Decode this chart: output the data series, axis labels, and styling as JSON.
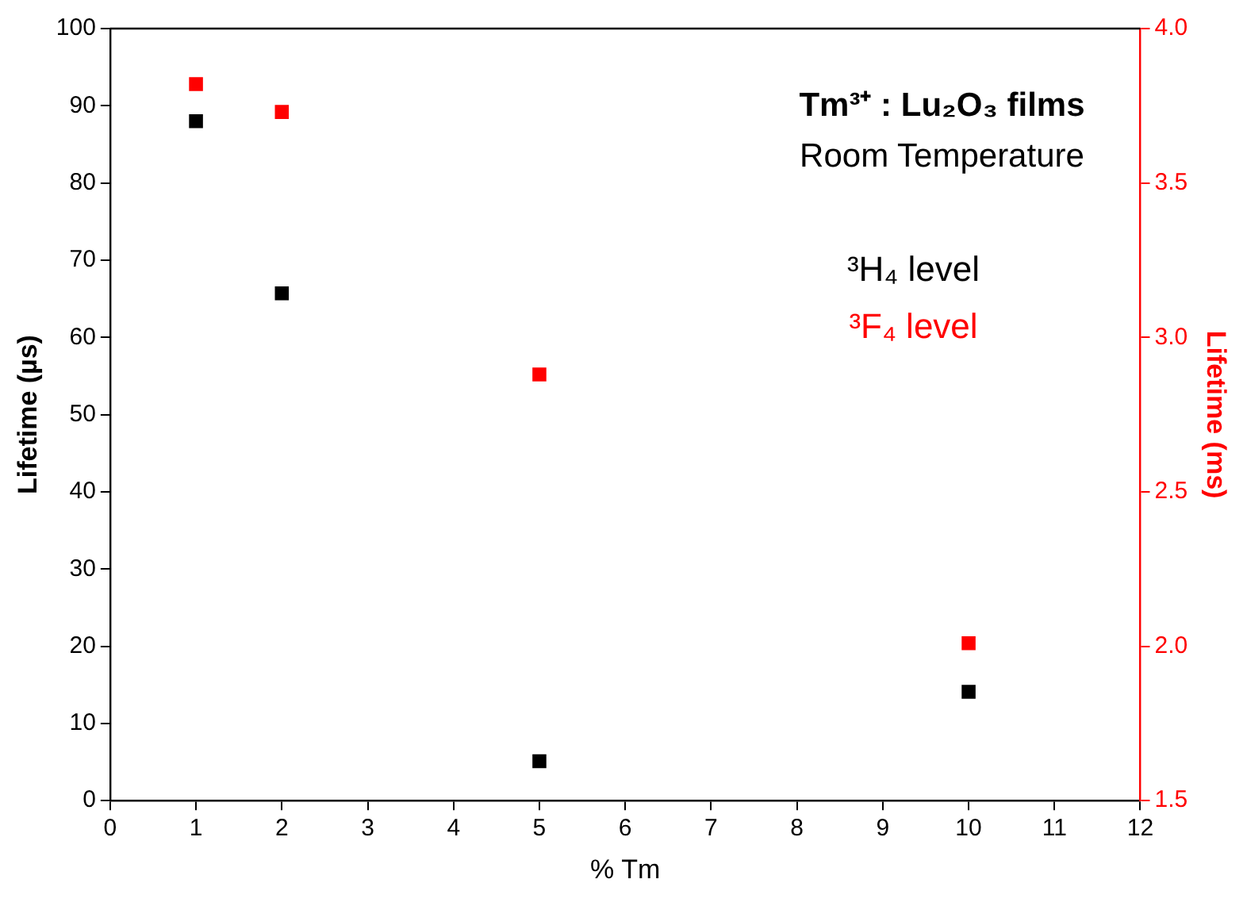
{
  "chart_data": {
    "type": "scatter",
    "xlabel": "% Tm",
    "ylabel": "Lifetime (µs)",
    "y2label": "Lifetime (ms)",
    "annotations": [
      "Tm³⁺ : Lu₂O₃ films",
      "Room Temperature"
    ],
    "x": [
      1,
      2,
      5,
      10
    ],
    "series": [
      {
        "name": "³H₄ level",
        "color": "#000000",
        "values": [
          88,
          65.7,
          5.1,
          14.1
        ]
      },
      {
        "name": "³F₄ level",
        "color": "#ff0000",
        "axis": "y2",
        "values": [
          3.82,
          3.73,
          2.88,
          2.01
        ]
      }
    ],
    "xlim": [
      0,
      12
    ],
    "xticks": [
      0,
      1,
      2,
      3,
      4,
      5,
      6,
      7,
      8,
      9,
      10,
      11,
      12
    ],
    "ylim": [
      0,
      100
    ],
    "yticks": [
      0,
      10,
      20,
      30,
      40,
      50,
      60,
      70,
      80,
      90,
      100
    ],
    "y2lim": [
      1.5,
      4.0
    ],
    "y2ticks": [
      {
        "value": 1.5,
        "label": "1.5"
      },
      {
        "value": 2.0,
        "label": "2.0"
      },
      {
        "value": 2.5,
        "label": "2.5"
      },
      {
        "value": 3.0,
        "label": "3.0"
      },
      {
        "value": 3.5,
        "label": "3.5"
      },
      {
        "value": 4.0,
        "label": "4.0"
      }
    ],
    "grid": false,
    "legend": "top right",
    "marker": "square"
  }
}
